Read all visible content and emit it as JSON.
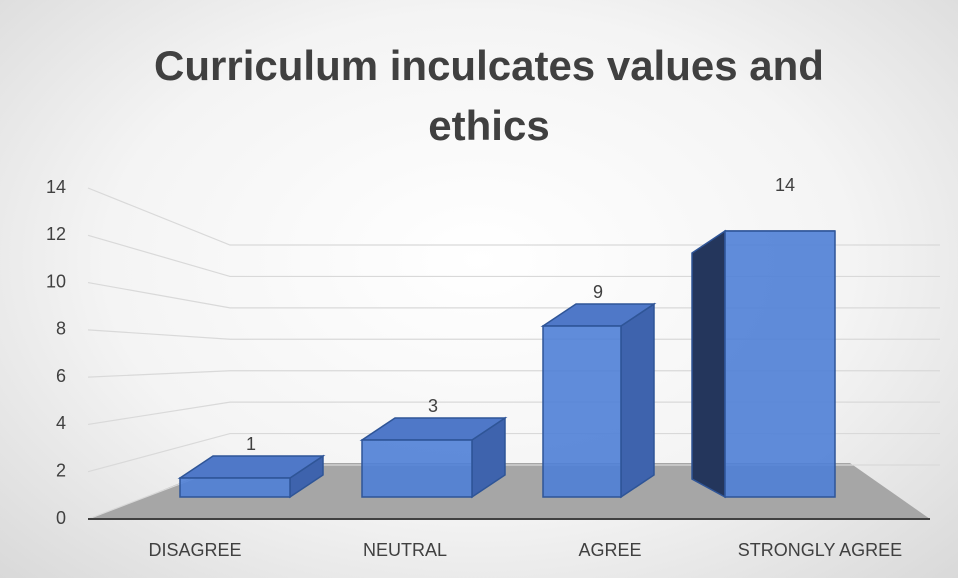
{
  "chart_data": {
    "type": "bar3d",
    "title": "Curriculum inculcates values and ethics",
    "categories": [
      "DISAGREE",
      "NEUTRAL",
      "AGREE",
      "STRONGLY AGREE"
    ],
    "values": [
      1,
      3,
      9,
      14
    ],
    "color": "#4f7fd6",
    "ylim": [
      0,
      14
    ],
    "yticks": [
      0,
      2,
      4,
      6,
      8,
      10,
      12,
      14
    ],
    "grid": true
  }
}
